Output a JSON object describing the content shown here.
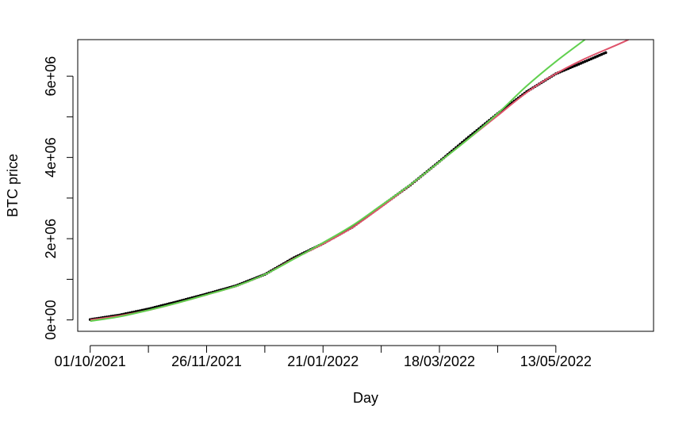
{
  "chart_data": {
    "type": "line",
    "title": "",
    "xlabel": "Day",
    "ylabel": "BTC price",
    "x_range": [
      "2021-09-25",
      "2022-06-29"
    ],
    "ylim": [
      -280000,
      6900000
    ],
    "x_ticks": [
      {
        "date": "2021-10-01",
        "label": "01/10/2021"
      },
      {
        "date": "2021-10-29",
        "label": ""
      },
      {
        "date": "2021-11-26",
        "label": "26/11/2021"
      },
      {
        "date": "2021-12-24",
        "label": ""
      },
      {
        "date": "2022-01-21",
        "label": "21/01/2022"
      },
      {
        "date": "2022-02-18",
        "label": ""
      },
      {
        "date": "2022-03-18",
        "label": "18/03/2022"
      },
      {
        "date": "2022-04-15",
        "label": ""
      },
      {
        "date": "2022-05-13",
        "label": "13/05/2022"
      }
    ],
    "y_ticks": [
      {
        "value": 0,
        "label": "0e+00"
      },
      {
        "value": 1000000,
        "label": ""
      },
      {
        "value": 2000000,
        "label": "2e+06"
      },
      {
        "value": 3000000,
        "label": ""
      },
      {
        "value": 4000000,
        "label": "4e+06"
      },
      {
        "value": 5000000,
        "label": ""
      },
      {
        "value": 6000000,
        "label": "6e+06"
      }
    ],
    "grid": false,
    "legend": "none",
    "series": [
      {
        "color": "#000000",
        "style": "points",
        "points": [
          [
            "2021-10-01",
            10000
          ],
          [
            "2021-10-15",
            120000
          ],
          [
            "2021-10-29",
            270000
          ],
          [
            "2021-11-12",
            450000
          ],
          [
            "2021-11-26",
            640000
          ],
          [
            "2021-12-10",
            840000
          ],
          [
            "2021-12-24",
            1120000
          ],
          [
            "2022-01-07",
            1530000
          ],
          [
            "2022-01-21",
            1880000
          ],
          [
            "2022-02-04",
            2280000
          ],
          [
            "2022-02-18",
            2800000
          ],
          [
            "2022-03-04",
            3320000
          ],
          [
            "2022-03-18",
            3900000
          ],
          [
            "2022-04-01",
            4500000
          ],
          [
            "2022-04-15",
            5080000
          ],
          [
            "2022-04-29",
            5620000
          ],
          [
            "2022-05-13",
            6060000
          ],
          [
            "2022-05-27",
            6360000
          ],
          [
            "2022-06-06",
            6580000
          ]
        ]
      },
      {
        "color": "#df536b",
        "style": "line",
        "points": [
          [
            "2021-10-01",
            0
          ],
          [
            "2021-10-15",
            100000
          ],
          [
            "2021-10-29",
            240000
          ],
          [
            "2021-11-12",
            420000
          ],
          [
            "2021-11-26",
            620000
          ],
          [
            "2021-12-10",
            830000
          ],
          [
            "2021-12-24",
            1120000
          ],
          [
            "2022-01-07",
            1510000
          ],
          [
            "2022-01-21",
            1870000
          ],
          [
            "2022-02-04",
            2270000
          ],
          [
            "2022-02-18",
            2780000
          ],
          [
            "2022-03-04",
            3320000
          ],
          [
            "2022-03-18",
            3890000
          ],
          [
            "2022-04-01",
            4460000
          ],
          [
            "2022-04-15",
            5030000
          ],
          [
            "2022-04-29",
            5600000
          ],
          [
            "2022-05-13",
            6060000
          ],
          [
            "2022-05-27",
            6430000
          ],
          [
            "2022-06-10",
            6740000
          ],
          [
            "2022-06-17",
            6900000
          ]
        ]
      },
      {
        "color": "#61d04f",
        "style": "line",
        "points": [
          [
            "2021-10-01",
            -30000
          ],
          [
            "2021-10-15",
            80000
          ],
          [
            "2021-10-29",
            240000
          ],
          [
            "2021-11-12",
            420000
          ],
          [
            "2021-11-26",
            620000
          ],
          [
            "2021-12-10",
            830000
          ],
          [
            "2021-12-24",
            1120000
          ],
          [
            "2022-01-07",
            1500000
          ],
          [
            "2022-01-21",
            1900000
          ],
          [
            "2022-02-04",
            2320000
          ],
          [
            "2022-02-18",
            2820000
          ],
          [
            "2022-03-04",
            3330000
          ],
          [
            "2022-03-18",
            3890000
          ],
          [
            "2022-04-01",
            4460000
          ],
          [
            "2022-04-15",
            5080000
          ],
          [
            "2022-04-29",
            5760000
          ],
          [
            "2022-05-13",
            6360000
          ],
          [
            "2022-05-27",
            6900000
          ]
        ]
      }
    ]
  }
}
